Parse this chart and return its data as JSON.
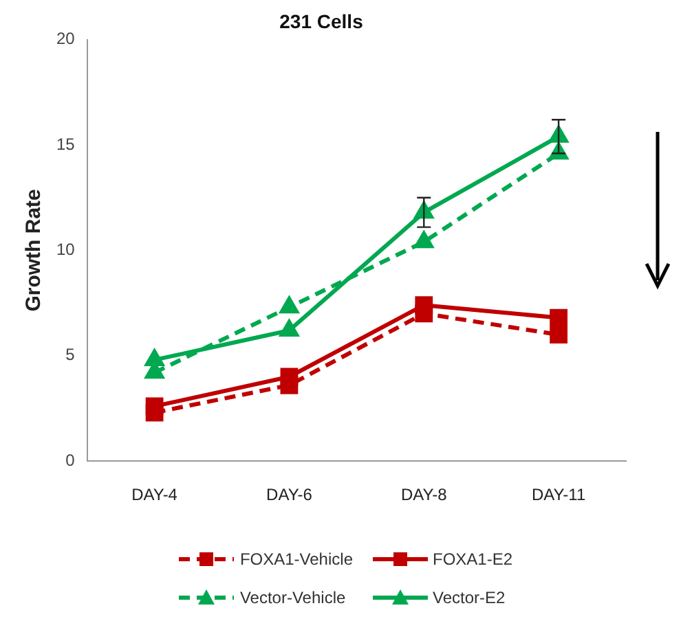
{
  "chart_data": {
    "type": "line",
    "title": "231 Cells",
    "ylabel": "Growth Rate",
    "categories": [
      "DAY-4",
      "DAY-6",
      "DAY-8",
      "DAY-11"
    ],
    "ylim": [
      0,
      20
    ],
    "yticks": [
      0,
      5,
      10,
      15,
      20
    ],
    "grid": false,
    "legend": "bottom",
    "series": [
      {
        "name": "FOXA1-Vehicle",
        "color": "#c00000",
        "line_style": "dashed",
        "marker": "square",
        "values": [
          2.3,
          3.6,
          7.0,
          6.0
        ]
      },
      {
        "name": "FOXA1-E2",
        "color": "#c00000",
        "line_style": "solid",
        "marker": "square",
        "values": [
          2.6,
          4.0,
          7.4,
          6.8
        ]
      },
      {
        "name": "Vector-Vehicle",
        "color": "#00a850",
        "line_style": "dashed",
        "marker": "triangle",
        "values": [
          4.2,
          7.3,
          10.4,
          14.6
        ]
      },
      {
        "name": "Vector-E2",
        "color": "#00a850",
        "line_style": "solid",
        "marker": "triangle",
        "values": [
          4.8,
          6.2,
          11.8,
          15.4
        ],
        "errors": [
          null,
          null,
          0.7,
          0.8
        ]
      }
    ]
  }
}
